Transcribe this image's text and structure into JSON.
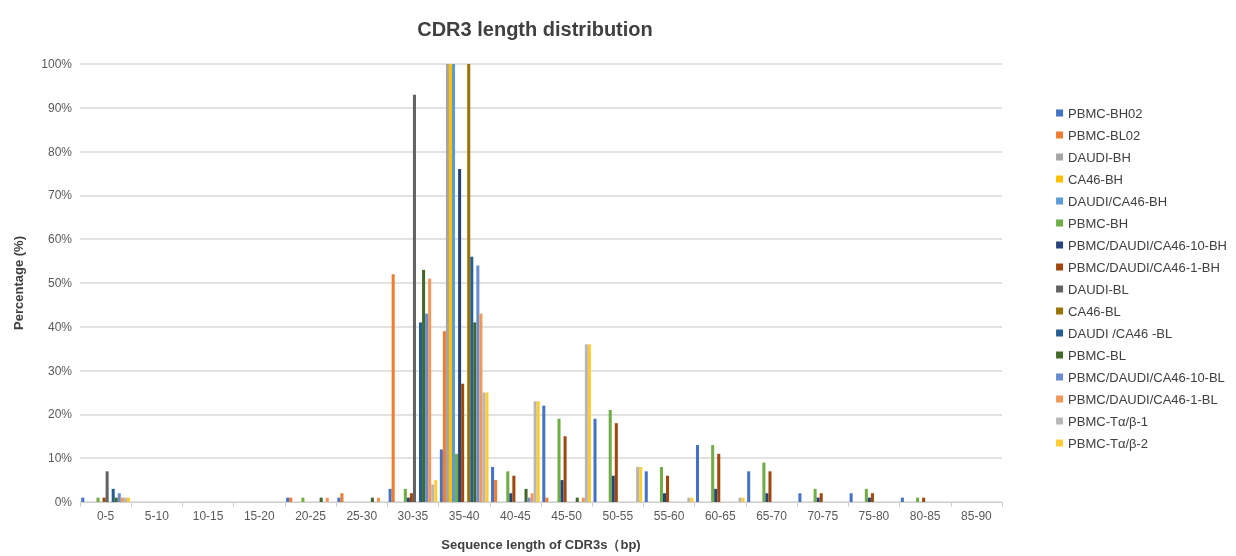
{
  "chart_data": {
    "type": "bar",
    "title": "CDR3 length distribution",
    "xlabel": "Sequence length of CDR3s（bp)",
    "ylabel": "Percentage (%)",
    "categories": [
      "0-5",
      "5-10",
      "10-15",
      "15-20",
      "20-25",
      "25-30",
      "30-35",
      "35-40",
      "40-45",
      "45-50",
      "50-55",
      "55-60",
      "60-65",
      "65-70",
      "70-75",
      "75-80",
      "80-85",
      "85-90"
    ],
    "ylim": [
      0,
      100
    ],
    "yticks": [
      {
        "value": 0,
        "label": "0%"
      },
      {
        "value": 10,
        "label": "10%"
      },
      {
        "value": 20,
        "label": "20%"
      },
      {
        "value": 30,
        "label": "30%"
      },
      {
        "value": 40,
        "label": "40%"
      },
      {
        "value": 50,
        "label": "50%"
      },
      {
        "value": 60,
        "label": "60%"
      },
      {
        "value": 70,
        "label": "70%"
      },
      {
        "value": 80,
        "label": "80%"
      },
      {
        "value": 90,
        "label": "90%"
      },
      {
        "value": 100,
        "label": "100%"
      }
    ],
    "grid": "y",
    "legend": "right",
    "series": [
      {
        "name": "PBMC-BH02",
        "color": "#4472c4",
        "values": [
          1,
          null,
          null,
          null,
          1,
          1,
          3,
          12,
          8,
          22,
          19,
          7,
          13,
          7,
          2,
          2,
          1,
          null
        ]
      },
      {
        "name": "PBMC-BL02",
        "color": "#ed7d31",
        "values": [
          null,
          null,
          null,
          null,
          1,
          2,
          52,
          39,
          5,
          1,
          null,
          null,
          null,
          null,
          null,
          null,
          null,
          null
        ]
      },
      {
        "name": "DAUDI-BH",
        "color": "#a5a5a5",
        "values": [
          null,
          null,
          null,
          null,
          null,
          null,
          null,
          100,
          null,
          null,
          null,
          null,
          null,
          null,
          null,
          null,
          null,
          null
        ]
      },
      {
        "name": "CA46-BH",
        "color": "#ffc000",
        "values": [
          null,
          null,
          null,
          null,
          null,
          null,
          null,
          100,
          null,
          null,
          null,
          null,
          null,
          null,
          null,
          null,
          null,
          null
        ]
      },
      {
        "name": "DAUDI/CA46-BH",
        "color": "#5b9bd5",
        "values": [
          null,
          null,
          null,
          null,
          null,
          null,
          null,
          100,
          null,
          null,
          null,
          null,
          null,
          null,
          null,
          null,
          null,
          null
        ]
      },
      {
        "name": "PBMC-BH",
        "color": "#70ad47",
        "values": [
          1,
          null,
          null,
          null,
          1,
          null,
          3,
          11,
          7,
          19,
          21,
          8,
          13,
          9,
          3,
          3,
          1,
          null
        ]
      },
      {
        "name": "PBMC/DAUDI/CA46-10-BH",
        "color": "#264478",
        "values": [
          null,
          null,
          null,
          null,
          null,
          null,
          1,
          76,
          2,
          5,
          6,
          2,
          3,
          2,
          1,
          1,
          null,
          null
        ]
      },
      {
        "name": "PBMC/DAUDI/CA46-1-BH",
        "color": "#9e480e",
        "values": [
          1,
          null,
          null,
          null,
          null,
          null,
          2,
          27,
          6,
          15,
          18,
          6,
          11,
          7,
          2,
          2,
          1,
          null
        ]
      },
      {
        "name": "DAUDI-BL",
        "color": "#636363",
        "values": [
          7,
          null,
          null,
          null,
          null,
          null,
          93,
          null,
          null,
          null,
          null,
          null,
          null,
          null,
          null,
          null,
          null,
          null
        ]
      },
      {
        "name": "CA46-BL",
        "color": "#997300",
        "values": [
          null,
          null,
          null,
          null,
          null,
          null,
          null,
          100,
          null,
          null,
          null,
          null,
          null,
          null,
          null,
          null,
          null,
          null
        ]
      },
      {
        "name": "DAUDI /CA46 -BL",
        "color": "#255e91",
        "values": [
          3,
          null,
          null,
          null,
          null,
          null,
          41,
          56,
          null,
          null,
          null,
          null,
          null,
          null,
          null,
          null,
          null,
          null
        ]
      },
      {
        "name": "PBMC-BL",
        "color": "#43682b",
        "values": [
          1,
          null,
          null,
          null,
          1,
          1,
          53,
          41,
          3,
          1,
          null,
          null,
          null,
          null,
          null,
          null,
          null,
          null
        ]
      },
      {
        "name": "PBMC/DAUDI/CA46-10-BL",
        "color": "#698ed0",
        "values": [
          2,
          null,
          null,
          null,
          null,
          null,
          43,
          54,
          1,
          null,
          null,
          null,
          null,
          null,
          null,
          null,
          null,
          null
        ]
      },
      {
        "name": "PBMC/DAUDI/CA46-1-BL",
        "color": "#f1975a",
        "values": [
          1,
          null,
          null,
          null,
          1,
          1,
          51,
          43,
          2,
          1,
          null,
          null,
          null,
          null,
          null,
          null,
          null,
          null
        ]
      },
      {
        "name": "PBMC-Tα/β-1",
        "color": "#b7b7b7",
        "values": [
          1,
          null,
          null,
          null,
          null,
          null,
          4,
          25,
          23,
          36,
          8,
          1,
          1,
          null,
          null,
          null,
          null,
          null
        ]
      },
      {
        "name": "PBMC-Tα/β-2",
        "color": "#ffcd33",
        "values": [
          1,
          null,
          null,
          null,
          null,
          null,
          5,
          25,
          23,
          36,
          8,
          1,
          1,
          null,
          null,
          null,
          null,
          null
        ]
      }
    ]
  }
}
